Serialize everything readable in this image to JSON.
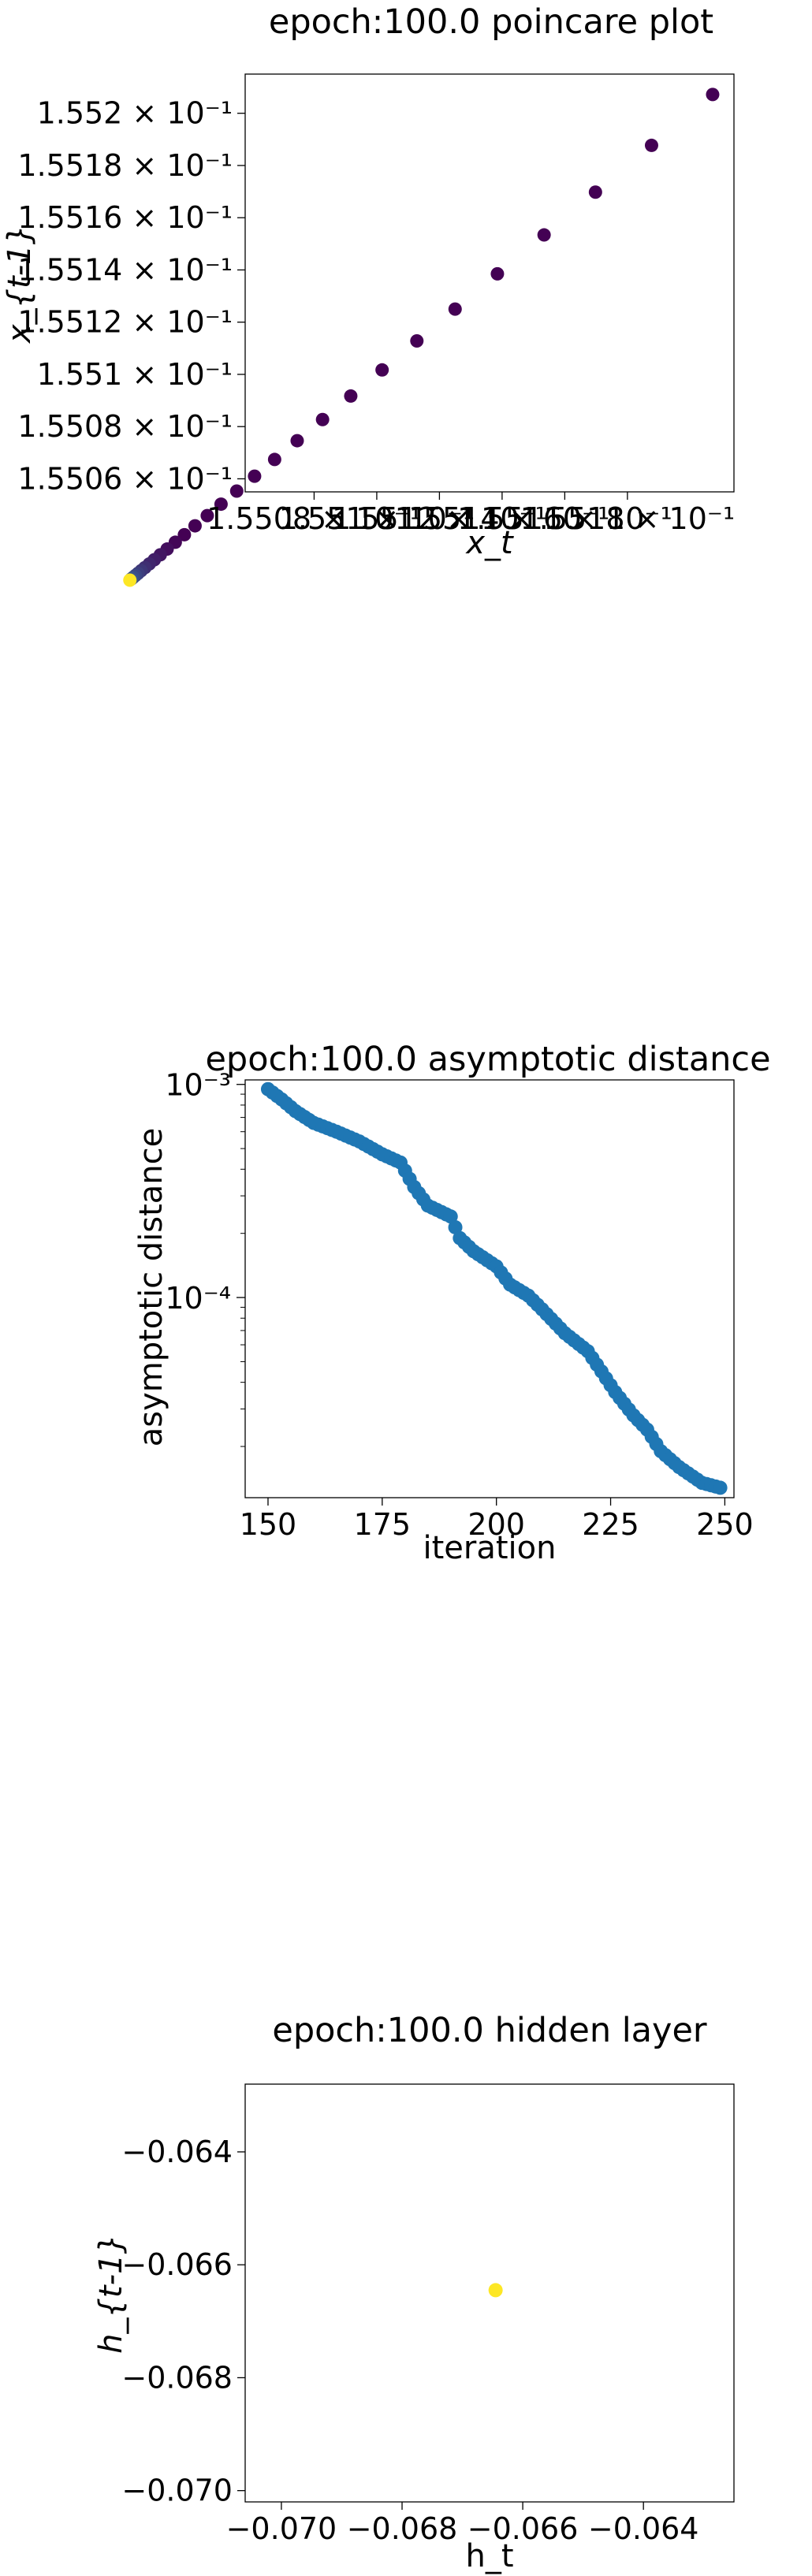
{
  "chart_data": [
    {
      "type": "scatter",
      "title": "epoch:100.0 poincare plot",
      "xlabel": "x_t",
      "ylabel": "x_{t-1}",
      "x_tick_labels": [
        "1.5508 × 10⁻¹",
        "1.551 × 10⁻¹",
        "1.5512 × 10⁻¹",
        "1.5514 × 10⁻¹",
        "1.5516 × 10⁻¹",
        "1.5518 × 10⁻¹"
      ],
      "y_tick_labels": [
        "1.5506 × 10⁻¹",
        "1.5508 × 10⁻¹",
        "1.551 × 10⁻¹",
        "1.5512 × 10⁻¹",
        "1.5514 × 10⁻¹",
        "1.5516 × 10⁻¹",
        "1.5518 × 10⁻¹",
        "1.552 × 10⁻¹"
      ],
      "x_ticks": [
        0.15508,
        0.1551,
        0.15512,
        0.15514,
        0.15516,
        0.15518
      ],
      "y_ticks": [
        0.15506,
        0.15508,
        0.1551,
        0.15512,
        0.15514,
        0.15516,
        0.15518,
        0.1552
      ],
      "xlim": [
        0.155058,
        0.155214
      ],
      "ylim": [
        0.155055,
        0.155215
      ],
      "points_x": [
        0.1552072,
        0.1551877,
        0.1551698,
        0.1551534,
        0.1551385,
        0.155125,
        0.1551128,
        0.1551017,
        0.1550917,
        0.1550827,
        0.1550746,
        0.1550674,
        0.155061,
        0.1550553,
        0.1550503,
        0.1550459,
        0.155042,
        0.1550386,
        0.1550357,
        0.1550331,
        0.1550309,
        0.155029,
        0.1550274,
        0.155026,
        0.1550248,
        0.1550238,
        0.155023,
        0.1550223,
        0.1550217,
        0.1550212
      ],
      "points_y": [
        0.1552072,
        0.1551877,
        0.1551698,
        0.1551534,
        0.1551385,
        0.155125,
        0.1551128,
        0.1551017,
        0.1550917,
        0.1550827,
        0.1550746,
        0.1550674,
        0.155061,
        0.1550553,
        0.1550503,
        0.1550459,
        0.155042,
        0.1550386,
        0.1550357,
        0.1550331,
        0.1550309,
        0.155029,
        0.1550274,
        0.155026,
        0.1550248,
        0.1550238,
        0.155023,
        0.1550223,
        0.1550217,
        0.1550212
      ],
      "color_start": "#440154",
      "color_mid": "#3b528b",
      "color_end": "#fde725",
      "grid": false
    },
    {
      "type": "scatter",
      "title": "epoch:100.0 asymptotic distance",
      "xlabel": "iteration",
      "ylabel": "asymptotic distance",
      "yscale": "log",
      "x_ticks": [
        150,
        175,
        200,
        225,
        250
      ],
      "x_tick_labels": [
        "150",
        "175",
        "200",
        "225",
        "250"
      ],
      "y_major_ticks": [
        0.0001,
        0.001
      ],
      "y_tick_labels": [
        "10⁻⁴",
        "10⁻³"
      ],
      "xlim": [
        145,
        252
      ],
      "ylim": [
        1.15e-05,
        0.00105
      ],
      "anchors": [
        [
          150,
          0.00095
        ],
        [
          153,
          0.00085
        ],
        [
          156,
          0.00075
        ],
        [
          160,
          0.00066
        ],
        [
          165,
          0.0006
        ],
        [
          170,
          0.00054
        ],
        [
          175,
          0.00047
        ],
        [
          179,
          0.00043
        ],
        [
          182,
          0.00033
        ],
        [
          185,
          0.00027
        ],
        [
          190,
          0.00024
        ],
        [
          192,
          0.00019
        ],
        [
          195,
          0.000165
        ],
        [
          200,
          0.00014
        ],
        [
          203,
          0.000115
        ],
        [
          207,
          0.000102
        ],
        [
          210,
          8.8e-05
        ],
        [
          215,
          6.8e-05
        ],
        [
          220,
          5.6e-05
        ],
        [
          223,
          4.5e-05
        ],
        [
          226,
          3.6e-05
        ],
        [
          230,
          2.8e-05
        ],
        [
          233,
          2.4e-05
        ],
        [
          236,
          1.9e-05
        ],
        [
          240,
          1.6e-05
        ],
        [
          245,
          1.35e-05
        ],
        [
          249,
          1.28e-05
        ]
      ],
      "color": "#1f77b4",
      "grid": false
    },
    {
      "type": "scatter",
      "title": "epoch:100.0 hidden layer",
      "xlabel": "h_t",
      "ylabel": "h_{t-1}",
      "x_ticks": [
        -0.07,
        -0.068,
        -0.066,
        -0.064
      ],
      "x_tick_labels": [
        "−0.070",
        "−0.068",
        "−0.066",
        "−0.064"
      ],
      "y_ticks": [
        -0.07,
        -0.068,
        -0.066,
        -0.064
      ],
      "y_tick_labels": [
        "−0.070",
        "−0.068",
        "−0.066",
        "−0.064"
      ],
      "xlim": [
        -0.0706,
        -0.0625
      ],
      "ylim": [
        -0.0702,
        -0.0628
      ],
      "points_x": [
        -0.06645
      ],
      "points_y": [
        -0.06645
      ],
      "color": "#fde725",
      "grid": false
    }
  ]
}
